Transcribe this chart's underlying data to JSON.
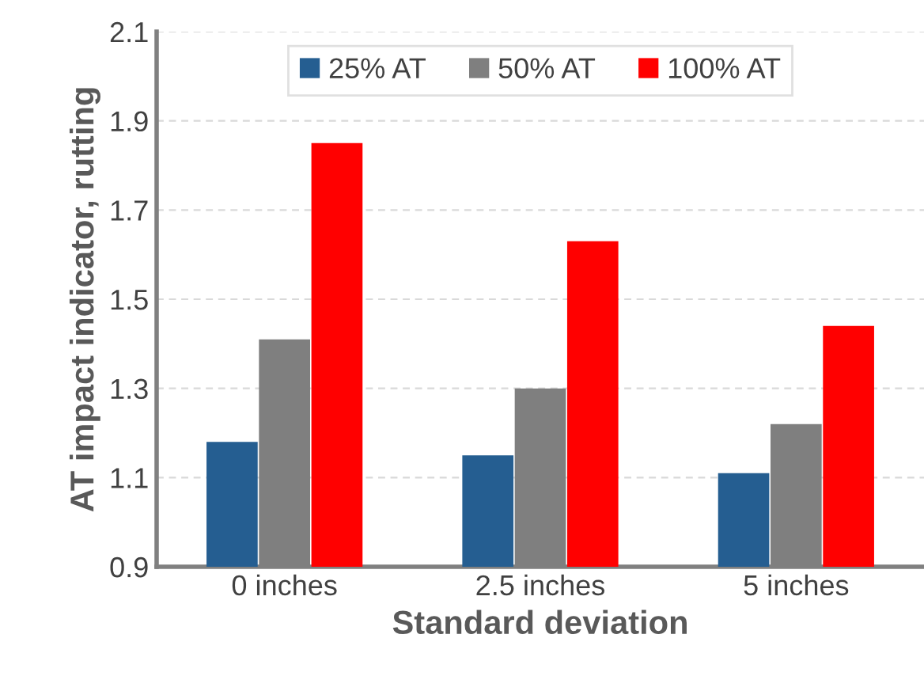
{
  "chart_data": {
    "type": "bar",
    "xlabel": "Standard deviation",
    "ylabel": "AT impact indicator, rutting",
    "categories": [
      "0 inches",
      "2.5 inches",
      "5 inches"
    ],
    "series": [
      {
        "name": "25% AT",
        "color": "#255e91",
        "values": [
          1.18,
          1.15,
          1.11
        ]
      },
      {
        "name": "50% AT",
        "color": "#7f7f7f",
        "values": [
          1.41,
          1.3,
          1.22
        ]
      },
      {
        "name": "100% AT",
        "color": "#ff0000",
        "values": [
          1.85,
          1.63,
          1.44
        ]
      }
    ],
    "ylim": [
      0.9,
      2.1
    ],
    "yticks": [
      0.9,
      1.1,
      1.3,
      1.5,
      1.7,
      1.9,
      2.1
    ],
    "grid": "y",
    "legend": "top"
  }
}
